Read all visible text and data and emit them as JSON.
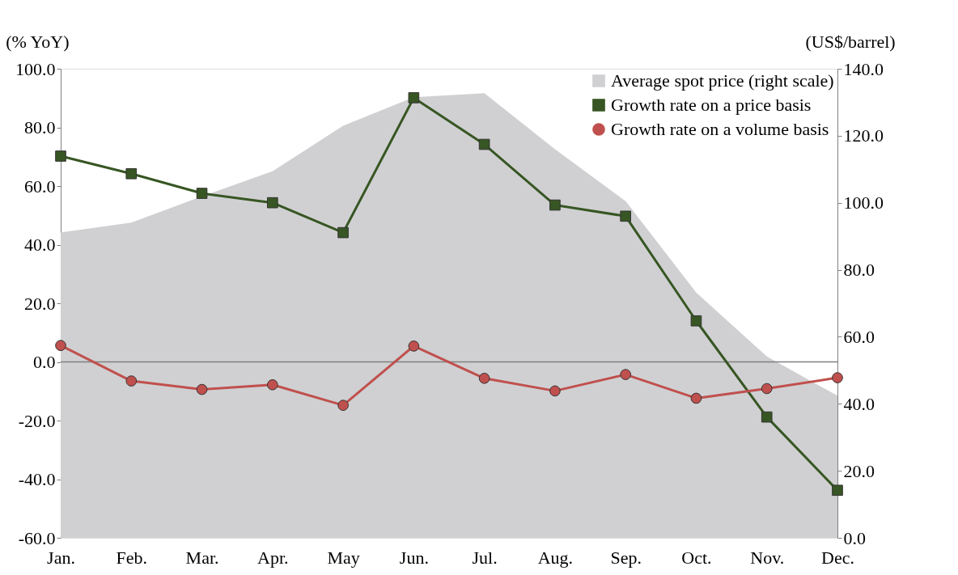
{
  "chart_data": {
    "type": "line",
    "ylabel": "(% YoY)",
    "y2label": "(US$/barrel)",
    "categories": [
      "Jan.",
      "Feb.",
      "Mar.",
      "Apr.",
      "May",
      "Jun.",
      "Jul.",
      "Aug.",
      "Sep.",
      "Oct.",
      "Nov.",
      "Dec."
    ],
    "series": [
      {
        "name": "Average spot price (right scale)",
        "type": "area",
        "axis": "y2",
        "color": "#d0d0d2",
        "values": [
          91.1,
          94.1,
          101.9,
          109.4,
          123.0,
          131.5,
          132.7,
          116.0,
          100.5,
          73.2,
          54.1,
          42.4
        ]
      },
      {
        "name": "Growth rate on a price basis",
        "type": "line",
        "marker": "square",
        "color": "#375623",
        "values": [
          70.2,
          64.2,
          57.5,
          54.3,
          44.1,
          90.1,
          74.2,
          53.5,
          49.7,
          14.0,
          -18.8,
          -43.8
        ]
      },
      {
        "name": "Growth rate on a volume basis",
        "type": "line",
        "marker": "circle",
        "color": "#c0504d",
        "values": [
          5.6,
          -6.5,
          -9.4,
          -7.8,
          -14.8,
          5.4,
          -5.6,
          -9.9,
          -4.3,
          -12.4,
          -9.1,
          -5.4
        ]
      }
    ],
    "ylim": [
      -60,
      100
    ],
    "yticks": [
      {
        "value": -60,
        "label": "-60.0"
      },
      {
        "value": -40,
        "label": "-40.0"
      },
      {
        "value": -20,
        "label": "-20.0"
      },
      {
        "value": 0,
        "label": "0.0"
      },
      {
        "value": 20,
        "label": "20.0"
      },
      {
        "value": 40,
        "label": "40.0"
      },
      {
        "value": 60,
        "label": "60.0"
      },
      {
        "value": 80,
        "label": "80.0"
      },
      {
        "value": 100,
        "label": "100.0"
      }
    ],
    "y2lim": [
      0,
      140
    ],
    "y2ticks": [
      {
        "value": 0,
        "label": "0.0"
      },
      {
        "value": 20,
        "label": "20.0"
      },
      {
        "value": 40,
        "label": "40.0"
      },
      {
        "value": 60,
        "label": "60.0"
      },
      {
        "value": 80,
        "label": "80.0"
      },
      {
        "value": 100,
        "label": "100.0"
      },
      {
        "value": 120,
        "label": "120.0"
      },
      {
        "value": 140,
        "label": "140.0"
      }
    ],
    "ref_lines": [
      {
        "axis": "y",
        "value": 0,
        "color": "#808080"
      }
    ],
    "grid": false,
    "legend": "top right"
  }
}
